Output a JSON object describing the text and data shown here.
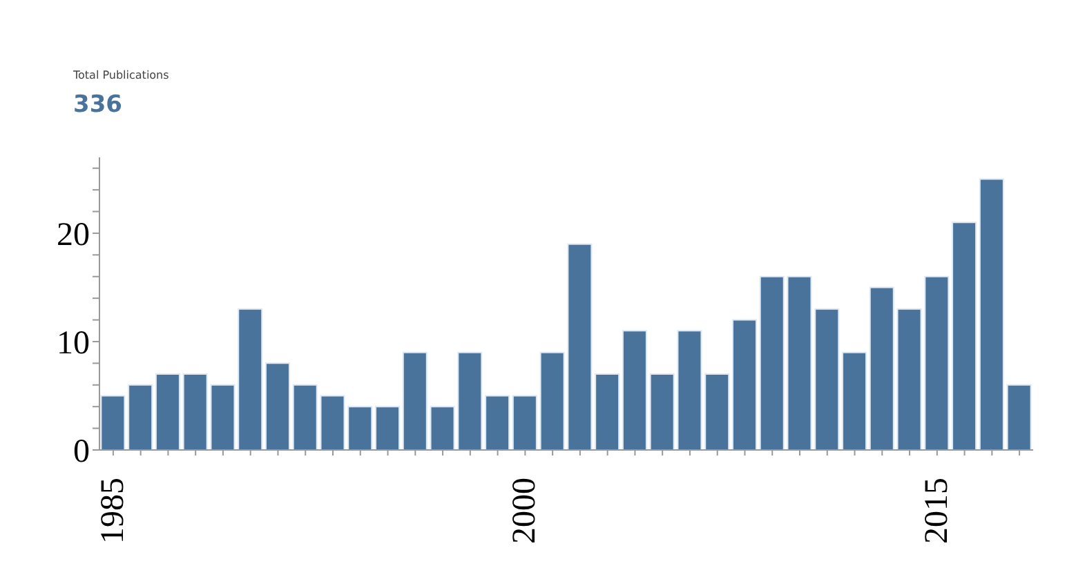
{
  "chart_data": {
    "type": "bar",
    "title": "Total Publications",
    "subtitle": "336",
    "categories": [
      "1985",
      null,
      null,
      null,
      null,
      null,
      null,
      null,
      null,
      null,
      null,
      null,
      null,
      null,
      null,
      "2000",
      null,
      null,
      null,
      null,
      null,
      null,
      null,
      null,
      null,
      null,
      null,
      null,
      null,
      null,
      "2015",
      null,
      null,
      null
    ],
    "values": [
      5,
      6,
      7,
      7,
      6,
      13,
      8,
      6,
      5,
      4,
      4,
      9,
      4,
      9,
      5,
      5,
      9,
      19,
      7,
      11,
      7,
      11,
      7,
      12,
      16,
      16,
      13,
      9,
      15,
      13,
      16,
      21,
      25,
      6
    ],
    "color": "#4a739b",
    "ylim": [
      0,
      27
    ],
    "yticks": [
      0,
      {
        "value": 2,
        "label": null
      },
      {
        "value": 4,
        "label": null
      },
      {
        "value": 6,
        "label": null
      },
      {
        "value": 8,
        "label": null
      },
      10,
      {
        "value": 12,
        "label": null
      },
      {
        "value": 14,
        "label": null
      },
      {
        "value": 16,
        "label": null
      },
      {
        "value": 18,
        "label": null
      },
      20,
      {
        "value": 22,
        "label": null
      },
      {
        "value": 24,
        "label": null
      },
      {
        "value": 26,
        "label": null
      }
    ],
    "grid": false,
    "legend": false
  }
}
